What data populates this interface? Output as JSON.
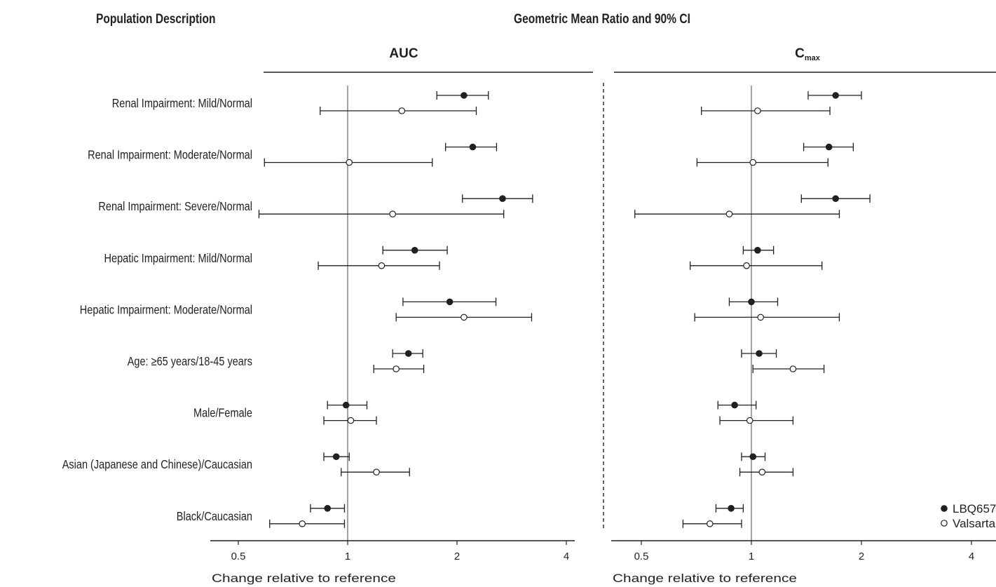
{
  "header": {
    "population_title": "Population Description",
    "ratio_title": "Geometric Mean Ratio and 90% CI"
  },
  "colors": {
    "ink": "#231f20",
    "filled": "#231f20",
    "open": "#ffffff"
  },
  "chart_data": {
    "type": "forest",
    "x_scale": "log2",
    "xlim": [
      0.5,
      4
    ],
    "reference_line": 1,
    "ticks": [
      0.5,
      1,
      2,
      4
    ],
    "tick_labels": [
      "0.5",
      "1",
      "2",
      "4"
    ],
    "xlabel": "Change relative to reference",
    "rows": [
      "Renal Impairment: Mild/Normal",
      "Renal Impairment: Moderate/Normal",
      "Renal Impairment: Severe/Normal",
      "Hepatic Impairment: Mild/Normal",
      "Hepatic Impairment: Moderate/Normal",
      "Age: ≥65 years/18-45 years",
      "Male/Female",
      "Asian (Japanese and Chinese)/Caucasian",
      "Black/Caucasian"
    ],
    "legend": [
      {
        "name": "LBQ657",
        "marker": "filled-circle"
      },
      {
        "name": "Valsartan",
        "marker": "open-circle"
      }
    ],
    "panels": [
      {
        "title": "AUC",
        "title_sub": "",
        "series": [
          {
            "name": "LBQ657",
            "points": [
              {
                "est": 2.09,
                "lo": 1.76,
                "hi": 2.44
              },
              {
                "est": 2.21,
                "lo": 1.86,
                "hi": 2.57
              },
              {
                "est": 2.67,
                "lo": 2.07,
                "hi": 3.23
              },
              {
                "est": 1.53,
                "lo": 1.25,
                "hi": 1.88
              },
              {
                "est": 1.91,
                "lo": 1.42,
                "hi": 2.56
              },
              {
                "est": 1.47,
                "lo": 1.33,
                "hi": 1.61
              },
              {
                "est": 0.99,
                "lo": 0.88,
                "hi": 1.13
              },
              {
                "est": 0.93,
                "lo": 0.86,
                "hi": 1.01
              },
              {
                "est": 0.88,
                "lo": 0.79,
                "hi": 0.98
              }
            ]
          },
          {
            "name": "Valsartan",
            "points": [
              {
                "est": 1.41,
                "lo": 0.84,
                "hi": 2.26
              },
              {
                "est": 1.01,
                "lo": 0.59,
                "hi": 1.71
              },
              {
                "est": 1.33,
                "lo": 0.57,
                "hi": 2.69
              },
              {
                "est": 1.24,
                "lo": 0.83,
                "hi": 1.79
              },
              {
                "est": 2.09,
                "lo": 1.36,
                "hi": 3.21
              },
              {
                "est": 1.36,
                "lo": 1.18,
                "hi": 1.62
              },
              {
                "est": 1.02,
                "lo": 0.86,
                "hi": 1.2
              },
              {
                "est": 1.2,
                "lo": 0.96,
                "hi": 1.48
              },
              {
                "est": 0.75,
                "lo": 0.61,
                "hi": 0.98
              }
            ]
          }
        ]
      },
      {
        "title": "C",
        "title_sub": "max",
        "series": [
          {
            "name": "LBQ657",
            "points": [
              {
                "est": 1.7,
                "lo": 1.43,
                "hi": 2.0
              },
              {
                "est": 1.63,
                "lo": 1.39,
                "hi": 1.9
              },
              {
                "est": 1.7,
                "lo": 1.37,
                "hi": 2.11
              },
              {
                "est": 1.04,
                "lo": 0.95,
                "hi": 1.15
              },
              {
                "est": 1.0,
                "lo": 0.87,
                "hi": 1.18
              },
              {
                "est": 1.05,
                "lo": 0.94,
                "hi": 1.17
              },
              {
                "est": 0.9,
                "lo": 0.81,
                "hi": 1.03
              },
              {
                "est": 1.01,
                "lo": 0.94,
                "hi": 1.09
              },
              {
                "est": 0.88,
                "lo": 0.8,
                "hi": 0.95
              }
            ]
          },
          {
            "name": "Valsartan",
            "points": [
              {
                "est": 1.04,
                "lo": 0.73,
                "hi": 1.64
              },
              {
                "est": 1.01,
                "lo": 0.71,
                "hi": 1.62
              },
              {
                "est": 0.87,
                "lo": 0.48,
                "hi": 1.74
              },
              {
                "est": 0.97,
                "lo": 0.68,
                "hi": 1.56
              },
              {
                "est": 1.06,
                "lo": 0.7,
                "hi": 1.74
              },
              {
                "est": 1.3,
                "lo": 1.01,
                "hi": 1.58
              },
              {
                "est": 0.99,
                "lo": 0.82,
                "hi": 1.3
              },
              {
                "est": 1.07,
                "lo": 0.93,
                "hi": 1.3
              },
              {
                "est": 0.77,
                "lo": 0.65,
                "hi": 0.94
              }
            ]
          }
        ]
      }
    ]
  }
}
